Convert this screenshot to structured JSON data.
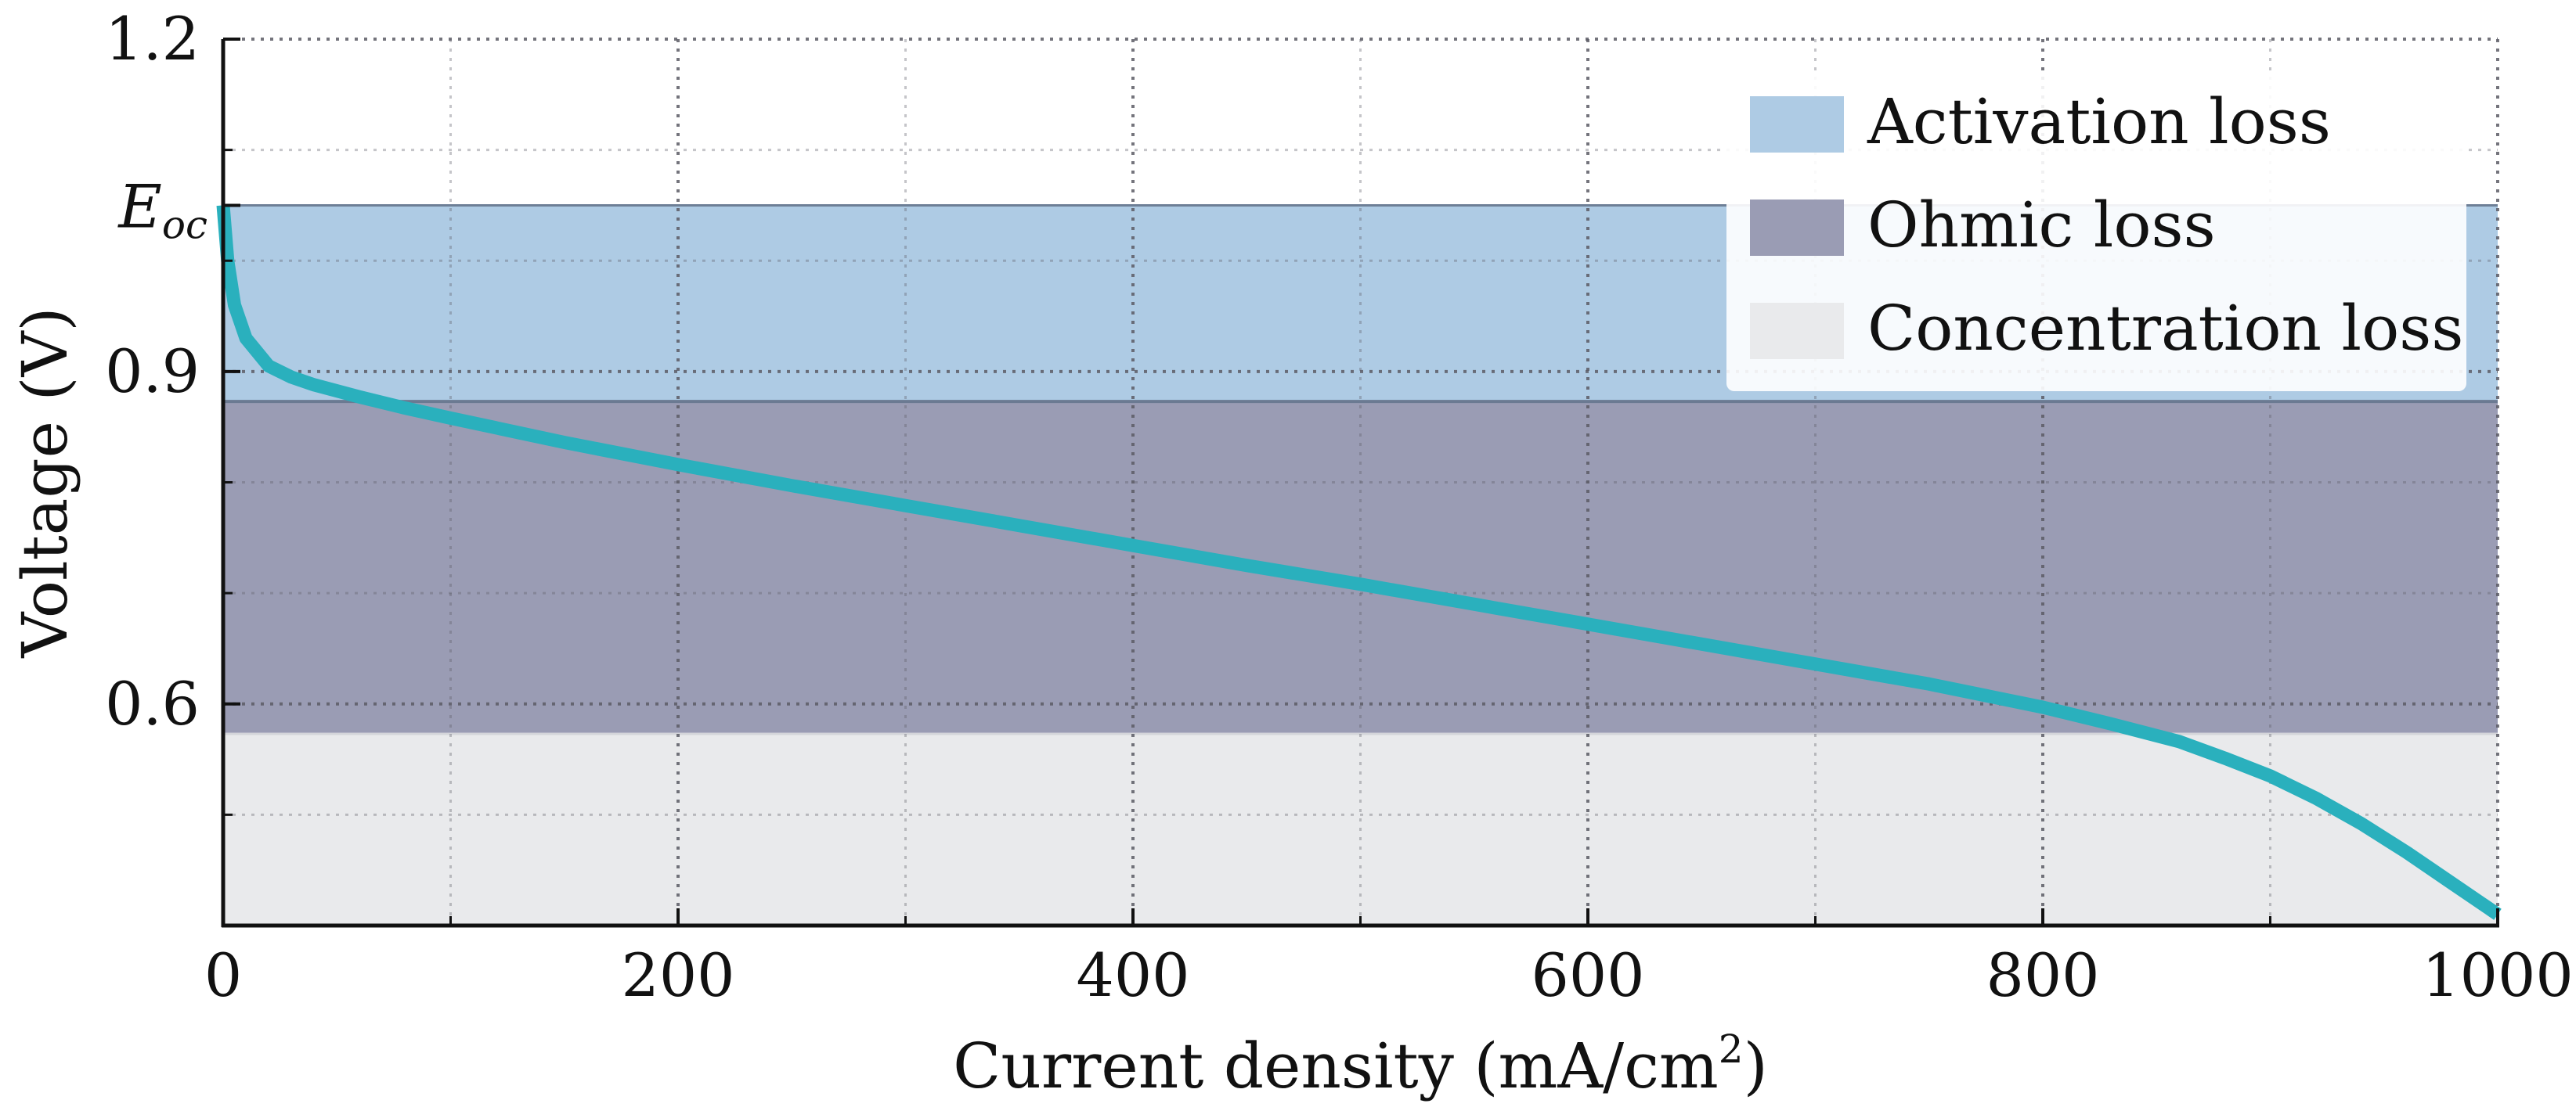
{
  "chart_data": {
    "type": "line",
    "title": "",
    "xlabel": "Current density (mA/cm",
    "xlabel_superscript": "2",
    "xlabel_suffix": ")",
    "ylabel": "Voltage (V)",
    "xlim": [
      0,
      1000
    ],
    "ylim": [
      0.4,
      1.2
    ],
    "x_ticks": [
      0,
      200,
      400,
      600,
      800,
      1000
    ],
    "x_tick_labels": [
      "0",
      "200",
      "400",
      "600",
      "800",
      "1000"
    ],
    "y_ticks": [
      0.6,
      0.9,
      1.2
    ],
    "y_tick_labels": [
      "0.6",
      "0.9",
      "1.2"
    ],
    "eoc": {
      "value": 1.05,
      "label_main": "E",
      "label_sub": "oc"
    },
    "grid": true,
    "legend_position": "top-right",
    "regions": [
      {
        "name": "Activation loss",
        "y_min": 0.873,
        "y_max": 1.05,
        "color": "#aecbe4"
      },
      {
        "name": "Ohmic loss",
        "y_min": 0.573,
        "y_max": 0.873,
        "color": "#9a9cb4"
      },
      {
        "name": "Concentration loss",
        "y_min": 0.4,
        "y_max": 0.573,
        "color": "#e9eaec"
      }
    ],
    "series": [
      {
        "color": "#2ab0bd",
        "x": [
          0,
          2,
          5,
          10,
          20,
          30,
          40,
          60,
          80,
          100,
          150,
          200,
          250,
          300,
          350,
          400,
          450,
          500,
          550,
          600,
          650,
          700,
          750,
          800,
          830,
          860,
          880,
          900,
          920,
          940,
          960,
          980,
          1000
        ],
        "y": [
          1.05,
          1.0,
          0.96,
          0.93,
          0.905,
          0.895,
          0.888,
          0.877,
          0.867,
          0.858,
          0.836,
          0.816,
          0.797,
          0.779,
          0.761,
          0.743,
          0.725,
          0.708,
          0.69,
          0.672,
          0.654,
          0.636,
          0.618,
          0.597,
          0.582,
          0.566,
          0.551,
          0.535,
          0.515,
          0.492,
          0.466,
          0.438,
          0.41
        ]
      }
    ]
  }
}
